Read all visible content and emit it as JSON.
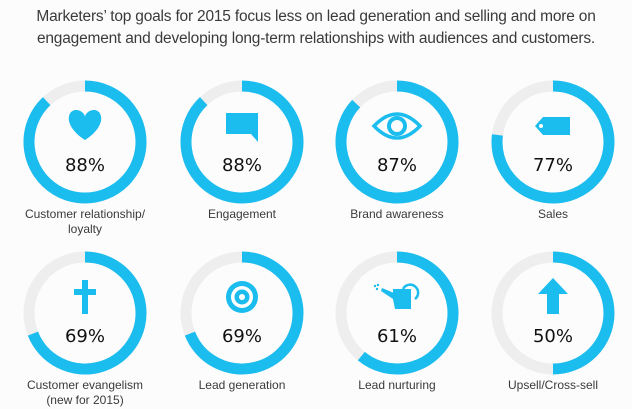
{
  "title_lines": [
    "Marketers’ top goals for 2015 focus less on lead generation and selling and more on",
    "engagement and developing long-term relationships with audiences and customers."
  ],
  "colors": {
    "fill": "#1bbcee",
    "track": "#eeeeee",
    "text": "#111111",
    "label": "#3a3a3a"
  },
  "chart_data": {
    "type": "pie",
    "subtype": "donut-progress-grid",
    "title": "Marketers’ top goals for 2015 focus less on lead generation and selling and more on engagement and developing long-term relationships with audiences and customers.",
    "unit": "%",
    "max": 100,
    "items": [
      {
        "label": [
          "Customer relationship/",
          "loyalty"
        ],
        "value": 88,
        "value_label": "88%",
        "icon": "heart-icon"
      },
      {
        "label": [
          "Engagement"
        ],
        "value": 88,
        "value_label": "88%",
        "icon": "speech-bubble-icon"
      },
      {
        "label": [
          "Brand awareness"
        ],
        "value": 87,
        "value_label": "87%",
        "icon": "eye-icon"
      },
      {
        "label": [
          "Sales"
        ],
        "value": 77,
        "value_label": "77%",
        "icon": "price-tag-icon"
      },
      {
        "label": [
          "Customer evangelism",
          "(new for 2015)"
        ],
        "value": 69,
        "value_label": "69%",
        "icon": "cross-icon"
      },
      {
        "label": [
          "Lead generation"
        ],
        "value": 69,
        "value_label": "69%",
        "icon": "target-icon"
      },
      {
        "label": [
          "Lead nurturing"
        ],
        "value": 61,
        "value_label": "61%",
        "icon": "watering-can-icon"
      },
      {
        "label": [
          "Upsell/Cross-sell"
        ],
        "value": 50,
        "value_label": "50%",
        "icon": "arrow-up-icon"
      }
    ]
  }
}
